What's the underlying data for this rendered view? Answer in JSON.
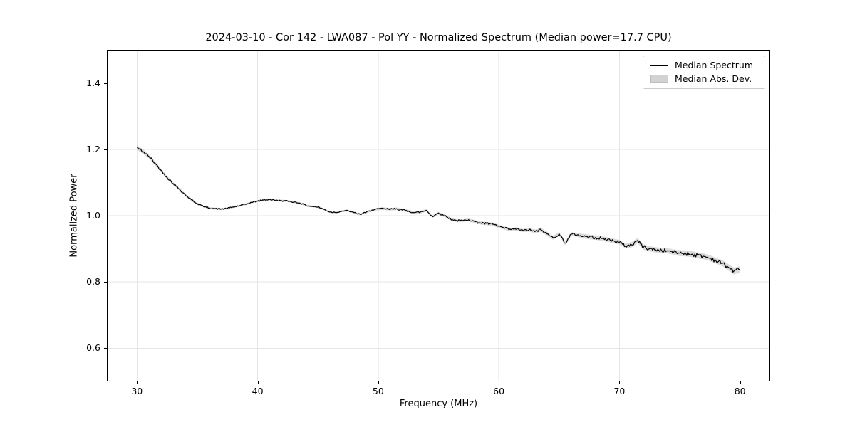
{
  "chart_data": {
    "type": "line",
    "title": "2024-03-10 - Cor 142 - LWA087 - Pol YY - Normalized Spectrum (Median power=17.7 CPU)",
    "xlabel": "Frequency (MHz)",
    "ylabel": "Normalized Power",
    "xlim": [
      27.5,
      82.5
    ],
    "ylim": [
      0.5,
      1.5
    ],
    "xticks": [
      30,
      40,
      50,
      60,
      70,
      80
    ],
    "yticks": [
      0.6,
      0.8,
      1.0,
      1.2,
      1.4
    ],
    "grid": true,
    "grid_color": "#e6e6e6",
    "legend_position": "upper right",
    "x": [
      30,
      30.5,
      31,
      31.5,
      32,
      32.5,
      33,
      33.5,
      34,
      34.5,
      35,
      35.5,
      36,
      36.5,
      37,
      37.5,
      38,
      38.5,
      39,
      39.5,
      40,
      40.5,
      41,
      41.5,
      42,
      42.5,
      43,
      43.5,
      44,
      44.5,
      45,
      45.5,
      46,
      46.5,
      47,
      47.5,
      48,
      48.5,
      49,
      49.5,
      50,
      50.5,
      51,
      51.5,
      52,
      52.5,
      53,
      53.5,
      54,
      54.5,
      55,
      55.5,
      56,
      56.5,
      57,
      57.5,
      58,
      58.5,
      59,
      59.5,
      60,
      60.5,
      61,
      61.5,
      62,
      62.5,
      63,
      63.5,
      64,
      64.5,
      65,
      65.5,
      66,
      66.5,
      67,
      67.5,
      68,
      68.5,
      69,
      69.5,
      70,
      70.5,
      71,
      71.5,
      72,
      72.5,
      73,
      73.5,
      74,
      74.5,
      75,
      75.5,
      76,
      76.5,
      77,
      77.5,
      78,
      78.5,
      79,
      79.5,
      80
    ],
    "series": [
      {
        "name": "Median Spectrum",
        "type": "line",
        "color": "#000000",
        "values": [
          1.205,
          1.193,
          1.178,
          1.158,
          1.136,
          1.115,
          1.097,
          1.08,
          1.063,
          1.048,
          1.036,
          1.028,
          1.023,
          1.021,
          1.02,
          1.022,
          1.026,
          1.03,
          1.034,
          1.04,
          1.044,
          1.047,
          1.049,
          1.046,
          1.045,
          1.044,
          1.041,
          1.038,
          1.031,
          1.028,
          1.026,
          1.019,
          1.011,
          1.01,
          1.014,
          1.015,
          1.009,
          1.004,
          1.01,
          1.017,
          1.02,
          1.021,
          1.019,
          1.021,
          1.017,
          1.014,
          1.009,
          1.011,
          1.016,
          0.997,
          1.008,
          1.0,
          0.99,
          0.985,
          0.985,
          0.988,
          0.982,
          0.978,
          0.976,
          0.974,
          0.968,
          0.962,
          0.958,
          0.96,
          0.955,
          0.957,
          0.952,
          0.957,
          0.945,
          0.933,
          0.945,
          0.917,
          0.944,
          0.942,
          0.938,
          0.936,
          0.934,
          0.931,
          0.928,
          0.924,
          0.92,
          0.908,
          0.912,
          0.925,
          0.905,
          0.9,
          0.897,
          0.895,
          0.894,
          0.89,
          0.887,
          0.886,
          0.884,
          0.88,
          0.877,
          0.872,
          0.864,
          0.857,
          0.845,
          0.833,
          0.838
        ]
      },
      {
        "name": "Median Abs. Dev.",
        "type": "band",
        "color": "#c9c9c9",
        "half_width": [
          0.007,
          0.007,
          0.006,
          0.006,
          0.005,
          0.005,
          0.004,
          0.004,
          0.004,
          0.004,
          0.003,
          0.003,
          0.003,
          0.003,
          0.003,
          0.003,
          0.003,
          0.003,
          0.003,
          0.003,
          0.003,
          0.003,
          0.003,
          0.003,
          0.003,
          0.003,
          0.003,
          0.003,
          0.003,
          0.003,
          0.003,
          0.003,
          0.003,
          0.003,
          0.003,
          0.003,
          0.003,
          0.003,
          0.003,
          0.003,
          0.004,
          0.004,
          0.004,
          0.004,
          0.004,
          0.004,
          0.004,
          0.004,
          0.004,
          0.004,
          0.004,
          0.004,
          0.004,
          0.004,
          0.004,
          0.004,
          0.005,
          0.005,
          0.005,
          0.005,
          0.005,
          0.005,
          0.005,
          0.005,
          0.005,
          0.005,
          0.006,
          0.006,
          0.006,
          0.006,
          0.006,
          0.006,
          0.006,
          0.006,
          0.007,
          0.007,
          0.007,
          0.007,
          0.007,
          0.007,
          0.007,
          0.007,
          0.008,
          0.008,
          0.008,
          0.008,
          0.008,
          0.008,
          0.008,
          0.008,
          0.009,
          0.009,
          0.009,
          0.009,
          0.009,
          0.009,
          0.009,
          0.009,
          0.01,
          0.01,
          0.01
        ]
      }
    ]
  },
  "colors": {
    "line": "#000000",
    "band": "#c9c9c9",
    "grid": "#e6e6e6",
    "spine": "#000000",
    "legend_border": "#cccccc"
  }
}
